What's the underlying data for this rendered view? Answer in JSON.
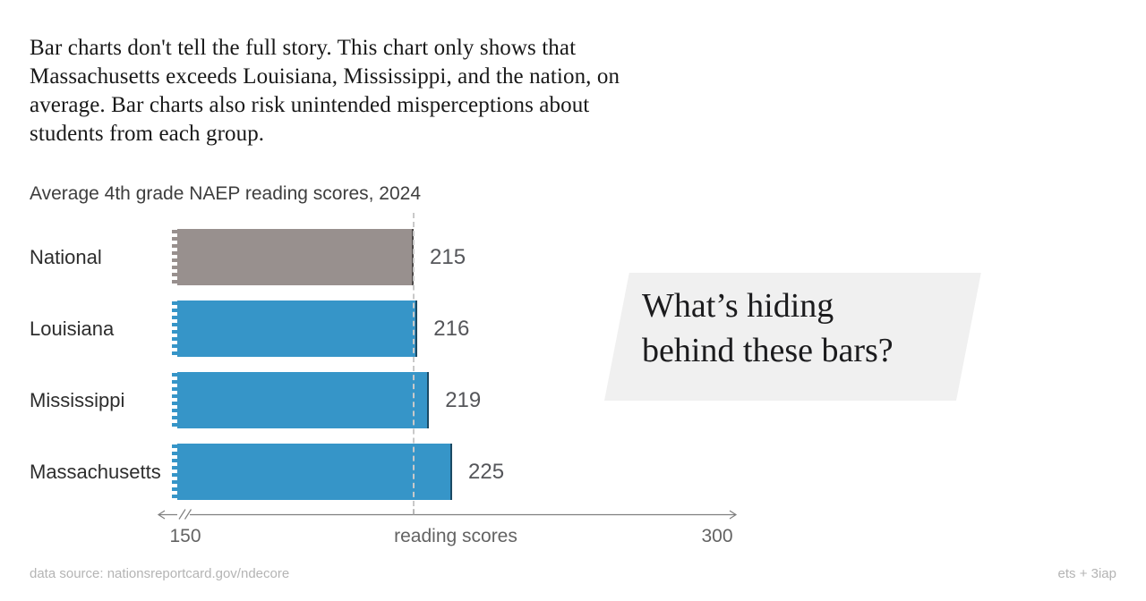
{
  "intro": {
    "text": "Bar charts don't tell the full story. This chart only shows that\nMassachusetts exceeds Louisiana, Mississippi, and the nation, on\naverage. Bar charts also risk unintended misperceptions about\nstudents from each group."
  },
  "chart_data": {
    "type": "bar",
    "orientation": "horizontal",
    "title": "Average 4th grade NAEP reading scores, 2024",
    "categories": [
      "National",
      "Louisiana",
      "Mississippi",
      "Massachusetts"
    ],
    "values": [
      215,
      216,
      219,
      225
    ],
    "bar_colors": [
      "#98908E",
      "#3695C8",
      "#3695C8",
      "#3695C8"
    ],
    "xlabel": "reading scores",
    "xlim": [
      150,
      300
    ],
    "x_tick_labels": [
      "150",
      "300"
    ],
    "reference_line_value": 215,
    "axis_break_left": true,
    "grid": false,
    "legend": "none",
    "torn_left_edges": true
  },
  "annotation": {
    "text": "What’s hiding\nbehind these bars?",
    "background_color": "#f0f0f0"
  },
  "footer": {
    "source": "data source: nationsreportcard.gov/ndecore",
    "credit": "ets + 3iap"
  },
  "colors": {
    "national_bar": "#98908E",
    "state_bar": "#3695C8",
    "reference_line": "#c9c9c9",
    "axis_line": "#7f7f7f",
    "value_label": "#55565a",
    "body_text": "#191919",
    "muted_text": "#b4b4b4"
  }
}
